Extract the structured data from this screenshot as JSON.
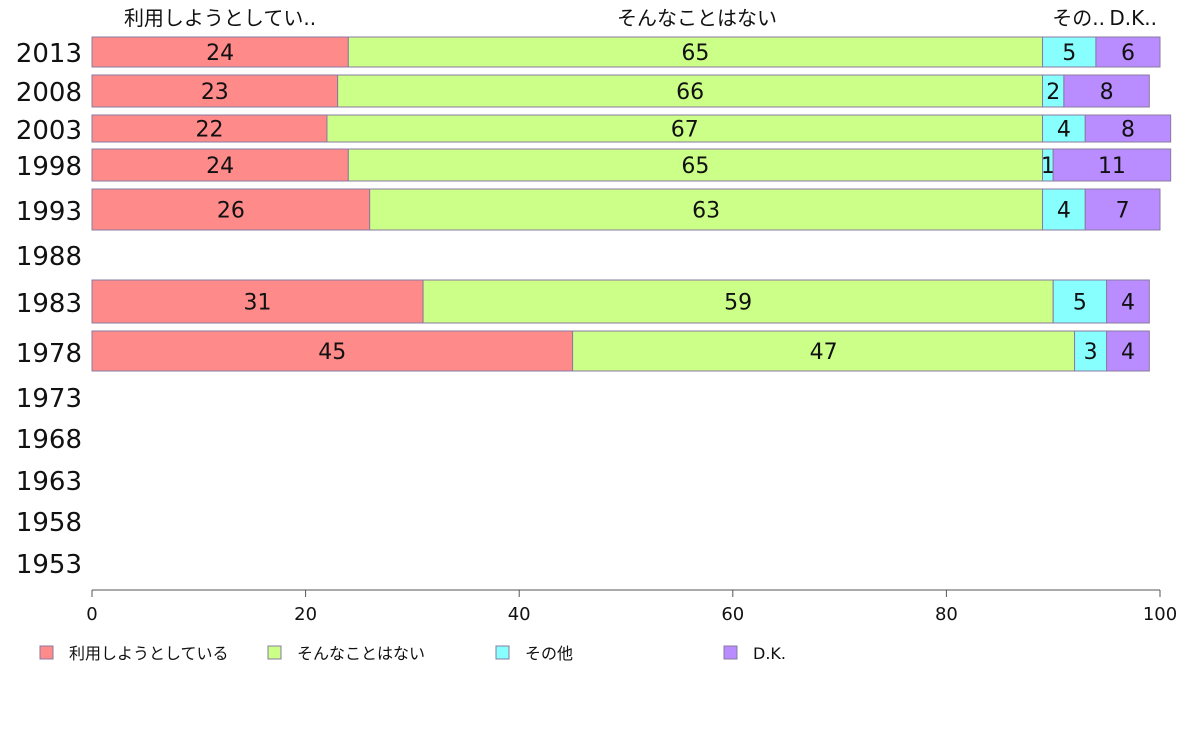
{
  "chart_data": {
    "type": "bar",
    "orientation": "horizontal",
    "stacked": true,
    "xlim": [
      0,
      100
    ],
    "xticks": [
      0,
      20,
      40,
      60,
      80,
      100
    ],
    "categories": [
      "2013",
      "2008",
      "2003",
      "1998",
      "1993",
      "1988",
      "1983",
      "1978",
      "1973",
      "1968",
      "1963",
      "1958",
      "1953"
    ],
    "column_headers": [
      "利用しようとしてい..",
      "そんなことはない",
      "その..",
      "D.K.."
    ],
    "series": [
      {
        "name": "利用しようとしている",
        "color": "#ff8a8a",
        "values": [
          24,
          23,
          22,
          24,
          26,
          null,
          31,
          45,
          null,
          null,
          null,
          null,
          null
        ]
      },
      {
        "name": "そんなことはない",
        "color": "#ccff88",
        "values": [
          65,
          66,
          67,
          65,
          63,
          null,
          59,
          47,
          null,
          null,
          null,
          null,
          null
        ]
      },
      {
        "name": "その他",
        "color": "#88ffff",
        "values": [
          5,
          2,
          4,
          1,
          4,
          null,
          5,
          3,
          null,
          null,
          null,
          null,
          null
        ]
      },
      {
        "name": "D.K.",
        "color": "#b98cff",
        "values": [
          6,
          8,
          8,
          11,
          7,
          null,
          4,
          4,
          null,
          null,
          null,
          null,
          null
        ]
      }
    ],
    "legend_position": "bottom",
    "grid": false
  }
}
